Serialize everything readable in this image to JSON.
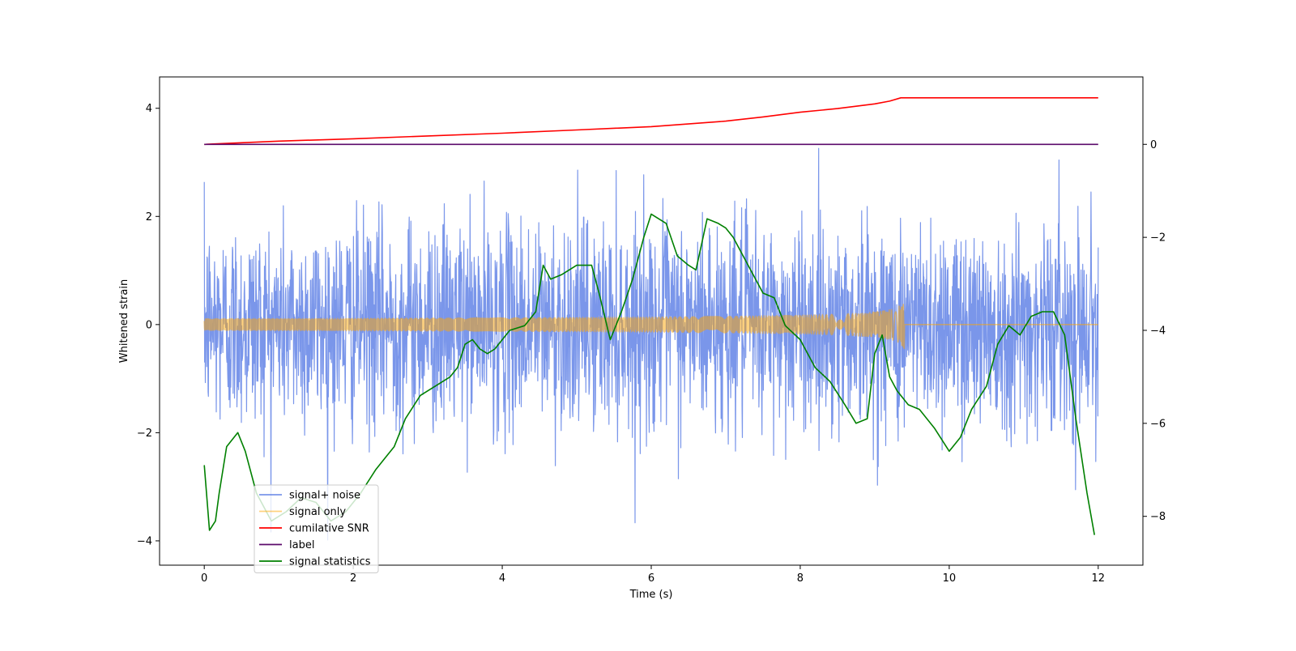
{
  "chart_data": {
    "type": "line",
    "title": "",
    "xlabel": "Time (s)",
    "ylabel": "Whitened strain",
    "y2label": "",
    "xlim": [
      -0.6,
      12.6
    ],
    "ylim": [
      -4.45,
      4.58
    ],
    "y2lim": [
      -9.05,
      1.45
    ],
    "grid": false,
    "legend_position": "lower-left",
    "x_ticks": [
      0,
      2,
      4,
      6,
      8,
      10,
      12
    ],
    "x_tick_labels": [
      "0",
      "2",
      "4",
      "6",
      "8",
      "10",
      "12"
    ],
    "y_ticks": [
      -4,
      -2,
      0,
      2,
      4
    ],
    "y_tick_labels": [
      "−4",
      "−2",
      "0",
      "2",
      "4"
    ],
    "y2_ticks": [
      -8,
      -6,
      -4,
      -2,
      0
    ],
    "y2_tick_labels": [
      "−8",
      "−6",
      "−4",
      "−2",
      "0"
    ],
    "series": [
      {
        "name": "signal+ noise",
        "axis": "left",
        "color": "#4169E1",
        "opacity": 0.7,
        "t_range": [
          0,
          12
        ],
        "noise_sigma": 1.0,
        "peak_extent": 4.17
      },
      {
        "name": "signal only",
        "axis": "left",
        "color": "#FFA500",
        "opacity": 0.5,
        "t_range": [
          0,
          12
        ],
        "chirp_merger_time": 9.4,
        "chirp_peak_amplitude": 0.5
      },
      {
        "name": "cumilative SNR",
        "axis": "right",
        "color": "#FF0000",
        "x": [
          0,
          1,
          2,
          3,
          4,
          5,
          6,
          7,
          7.5,
          8,
          8.5,
          9,
          9.2,
          9.35,
          9.4,
          12
        ],
        "y": [
          0.0,
          0.07,
          0.12,
          0.18,
          0.24,
          0.31,
          0.38,
          0.5,
          0.59,
          0.69,
          0.77,
          0.87,
          0.93,
          1.0,
          1.0,
          1.0
        ]
      },
      {
        "name": "label",
        "axis": "right",
        "color": "#5B0A6B",
        "x": [
          0,
          12
        ],
        "y": [
          0,
          0
        ]
      },
      {
        "name": "signal statistics",
        "axis": "right",
        "color": "#008000",
        "x": [
          0,
          0.07,
          0.15,
          0.2,
          0.3,
          0.45,
          0.55,
          0.7,
          0.9,
          1.1,
          1.3,
          1.5,
          1.7,
          1.9,
          2.1,
          2.3,
          2.45,
          2.55,
          2.7,
          2.9,
          3.1,
          3.3,
          3.4,
          3.5,
          3.6,
          3.7,
          3.8,
          3.9,
          4.1,
          4.3,
          4.45,
          4.55,
          4.65,
          4.8,
          5.0,
          5.2,
          5.3,
          5.45,
          5.6,
          5.75,
          5.9,
          6.0,
          6.1,
          6.2,
          6.35,
          6.5,
          6.6,
          6.75,
          6.9,
          7.0,
          7.1,
          7.3,
          7.5,
          7.65,
          7.8,
          8.0,
          8.2,
          8.4,
          8.6,
          8.75,
          8.9,
          9.0,
          9.1,
          9.2,
          9.3,
          9.45,
          9.6,
          9.8,
          10.0,
          10.15,
          10.3,
          10.5,
          10.65,
          10.8,
          10.95,
          11.1,
          11.25,
          11.4,
          11.55,
          11.7,
          11.85,
          11.95
        ],
        "y": [
          -6.9,
          -8.3,
          -8.1,
          -7.5,
          -6.5,
          -6.2,
          -6.6,
          -7.5,
          -8.1,
          -7.9,
          -7.6,
          -7.7,
          -8.1,
          -7.9,
          -7.5,
          -7.0,
          -6.7,
          -6.5,
          -5.9,
          -5.4,
          -5.2,
          -5.0,
          -4.8,
          -4.3,
          -4.2,
          -4.4,
          -4.5,
          -4.4,
          -4.0,
          -3.9,
          -3.6,
          -2.6,
          -2.9,
          -2.8,
          -2.6,
          -2.6,
          -3.2,
          -4.2,
          -3.6,
          -2.9,
          -2.0,
          -1.5,
          -1.6,
          -1.7,
          -2.4,
          -2.6,
          -2.7,
          -1.6,
          -1.7,
          -1.8,
          -2.0,
          -2.6,
          -3.2,
          -3.3,
          -3.9,
          -4.2,
          -4.8,
          -5.1,
          -5.6,
          -6.0,
          -5.9,
          -4.5,
          -4.1,
          -5.0,
          -5.3,
          -5.6,
          -5.7,
          -6.1,
          -6.6,
          -6.3,
          -5.7,
          -5.2,
          -4.3,
          -3.9,
          -4.1,
          -3.7,
          -3.6,
          -3.6,
          -4.1,
          -5.9,
          -7.5,
          -8.4
        ]
      }
    ]
  }
}
